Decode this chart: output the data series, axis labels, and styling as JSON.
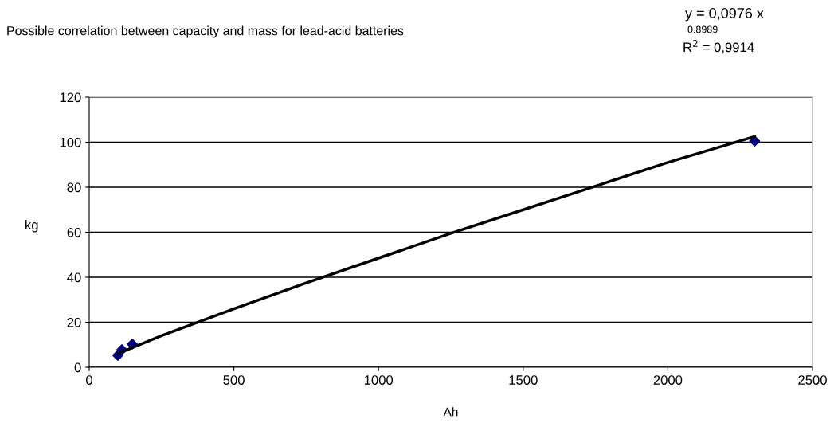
{
  "chart_data": {
    "type": "scatter",
    "title": "Possible correlation between capacity and mass for lead-acid batteries",
    "xlabel": "Ah",
    "ylabel": "kg",
    "series": [
      {
        "color": "#000080",
        "marker": "diamond",
        "x": [
          99,
          113,
          149,
          2300
        ],
        "values": [
          5.3,
          7.8,
          10.3,
          100.5
        ]
      },
      {
        "type": "line",
        "color": "#000000",
        "marker": "none",
        "x": [
          100,
          250,
          500,
          750,
          1000,
          1250,
          1500,
          1750,
          2000,
          2300
        ],
        "values": [
          6.1,
          14,
          26,
          37.5,
          48.5,
          59.5,
          70,
          80.5,
          91,
          102.5
        ]
      }
    ],
    "xlim": [
      0,
      2500
    ],
    "xticks": [
      0,
      500,
      1000,
      1500,
      2000,
      2500
    ],
    "ylim": [
      0,
      120
    ],
    "yticks": [
      0,
      20,
      40,
      60,
      80,
      100,
      120
    ],
    "grid": "y",
    "legend": false,
    "annotations": [
      "y = 0,0976 x",
      "0.8989",
      "R$^{2}$ = 0,9914"
    ]
  }
}
